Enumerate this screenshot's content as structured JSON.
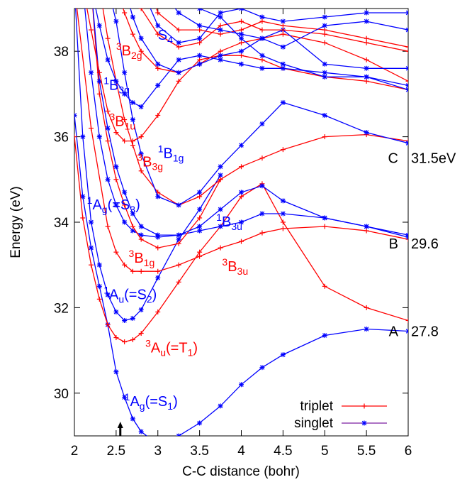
{
  "chart_data": {
    "type": "line",
    "xlabel": "C-C distance (bohr)",
    "ylabel": "Energy (eV)",
    "xlim": [
      2,
      6
    ],
    "ylim": [
      29,
      39
    ],
    "xticks": [
      "2",
      "2.5",
      "3",
      "3.5",
      "4",
      "4.5",
      "5",
      "5.5",
      "6"
    ],
    "yticks": [
      "30",
      "32",
      "34",
      "36",
      "38"
    ],
    "legend": {
      "placement": "bottom-right",
      "entries": [
        {
          "name": "triplet",
          "color": "#ff0000",
          "marker": "plus"
        },
        {
          "name": "singlet",
          "color": "#0000ff",
          "marker": "star"
        }
      ]
    },
    "arrow_at_x": 2.55,
    "right_labels": [
      {
        "letter": "A",
        "value": "27.8",
        "y": 31.45
      },
      {
        "letter": "B",
        "value": "29.6",
        "y": 33.5
      },
      {
        "letter": "C",
        "value": "31.5eV",
        "y": 35.5
      }
    ],
    "state_labels": [
      {
        "pre": "1",
        "base": "A",
        "sub": "g",
        "post": "(=S",
        "sub2": "1",
        "end": ")",
        "color": "#0000ff",
        "x": 2.6,
        "y": 29.7
      },
      {
        "pre": "3",
        "base": "A",
        "sub": "u",
        "post": "(=T",
        "sub2": "1",
        "end": ")",
        "color": "#ff0000",
        "x": 2.85,
        "y": 30.95
      },
      {
        "pre": "1",
        "base": "A",
        "sub": "u",
        "post": "(=S",
        "sub2": "2",
        "end": ")",
        "color": "#0000ff",
        "x": 2.35,
        "y": 32.2
      },
      {
        "pre": "3",
        "base": "B",
        "sub": "1g",
        "post": "",
        "sub2": "",
        "end": "",
        "color": "#ff0000",
        "x": 2.65,
        "y": 33.05
      },
      {
        "pre": "3",
        "base": "B",
        "sub": "3u",
        "post": "",
        "sub2": "",
        "end": "",
        "color": "#ff0000",
        "x": 3.77,
        "y": 32.85
      },
      {
        "pre": "1",
        "base": "B",
        "sub": "3u",
        "post": "",
        "sub2": "",
        "end": "",
        "color": "#0000ff",
        "x": 3.7,
        "y": 33.9
      },
      {
        "pre": "1",
        "base": "A",
        "sub": "g",
        "post": "(=S",
        "sub2": "3",
        "end": ")",
        "color": "#0000ff",
        "x": 2.15,
        "y": 34.3
      },
      {
        "pre": "3",
        "base": "B",
        "sub": "3g",
        "post": "",
        "sub2": "",
        "end": "",
        "color": "#ff0000",
        "x": 2.75,
        "y": 35.3
      },
      {
        "pre": "1",
        "base": "B",
        "sub": "1g",
        "post": "",
        "sub2": "",
        "end": "",
        "color": "#0000ff",
        "x": 3.0,
        "y": 35.5
      },
      {
        "pre": "3",
        "base": "B",
        "sub": "1u",
        "post": "",
        "sub2": "",
        "end": "",
        "color": "#ff0000",
        "x": 2.42,
        "y": 36.25
      },
      {
        "pre": "1",
        "base": "B",
        "sub": "3g",
        "post": "",
        "sub2": "",
        "end": "",
        "color": "#0000ff",
        "x": 2.35,
        "y": 37.1
      },
      {
        "pre": "3",
        "base": "B",
        "sub": "2g",
        "post": "",
        "sub2": "",
        "end": "",
        "color": "#ff0000",
        "x": 2.5,
        "y": 37.9
      },
      {
        "pre": "",
        "base": "S",
        "sub": "4",
        "post": "",
        "sub2": "",
        "end": "",
        "color": "#0000ff",
        "x": 3.0,
        "y": 38.4
      }
    ],
    "series": [
      {
        "spin": "singlet",
        "color": "#0000ff",
        "marker": "star",
        "x": [
          2,
          2.1,
          2.2,
          2.3,
          2.4,
          2.5,
          2.6,
          2.7,
          2.8,
          3.0,
          3.25,
          3.5,
          3.75,
          4.0,
          4.25,
          4.5,
          5.0,
          5.5,
          6.0
        ],
        "y": [
          36.5,
          34.6,
          33.4,
          32.5,
          31.6,
          30.5,
          29.9,
          29.4,
          29.1,
          28.8,
          29.0,
          29.3,
          29.7,
          30.2,
          30.6,
          30.9,
          31.35,
          31.5,
          31.45
        ]
      },
      {
        "spin": "triplet",
        "color": "#ff0000",
        "marker": "plus",
        "x": [
          2,
          2.1,
          2.2,
          2.3,
          2.4,
          2.5,
          2.6,
          2.7,
          2.8,
          3.0,
          3.25,
          3.5,
          3.75,
          4.0,
          4.25,
          4.5,
          5.0,
          5.5,
          6.0
        ],
        "y": [
          36.0,
          34.1,
          33.0,
          32.2,
          31.6,
          31.3,
          31.2,
          31.25,
          31.4,
          31.9,
          32.6,
          33.3,
          33.9,
          34.6,
          34.9,
          34.0,
          32.5,
          32.0,
          31.7
        ]
      },
      {
        "spin": "singlet",
        "color": "#0000ff",
        "marker": "star",
        "x": [
          2,
          2.1,
          2.2,
          2.3,
          2.4,
          2.5,
          2.6,
          2.7,
          2.8,
          3.0,
          3.25,
          3.5,
          3.75
        ],
        "y": [
          39.5,
          36.0,
          34.0,
          33.0,
          32.3,
          31.9,
          31.7,
          31.75,
          31.95,
          32.7,
          33.6,
          34.3,
          35.1
        ]
      },
      {
        "spin": "triplet",
        "color": "#ff0000",
        "marker": "plus",
        "x": [
          2,
          2.2,
          2.4,
          2.5,
          2.6,
          2.7,
          2.8,
          3.0,
          3.25,
          3.5,
          3.75,
          4.0,
          4.25,
          4.5,
          5.0,
          5.5,
          6.0
        ],
        "y": [
          39.5,
          36.2,
          33.9,
          33.3,
          33.0,
          32.85,
          32.85,
          32.85,
          33.0,
          33.2,
          33.4,
          33.55,
          33.75,
          33.85,
          33.9,
          33.8,
          33.6
        ]
      },
      {
        "spin": "singlet",
        "color": "#0000ff",
        "marker": "star",
        "x": [
          2.1,
          2.2,
          2.3,
          2.4,
          2.5,
          2.6,
          2.7,
          2.8,
          3.0,
          3.25,
          3.5,
          3.75,
          4.0,
          4.25,
          4.5,
          5.0,
          5.5,
          6.0
        ],
        "y": [
          39.5,
          37.5,
          36.0,
          35.0,
          34.4,
          34.0,
          33.8,
          33.7,
          33.65,
          33.7,
          33.8,
          33.9,
          34.0,
          34.2,
          34.2,
          34.1,
          33.9,
          33.65
        ]
      },
      {
        "spin": "triplet",
        "color": "#ff0000",
        "marker": "plus",
        "x": [
          2.2,
          2.3,
          2.4,
          2.5,
          2.6,
          2.7,
          2.8,
          3.0,
          3.25,
          3.5,
          3.75
        ],
        "y": [
          39.5,
          37.0,
          35.9,
          35.0,
          34.4,
          33.9,
          33.6,
          33.4,
          33.5,
          34.1,
          35.0
        ]
      },
      {
        "spin": "singlet",
        "color": "#0000ff",
        "marker": "star",
        "x": [
          2.2,
          2.3,
          2.4,
          2.5,
          2.6,
          2.7,
          2.8,
          3.0,
          3.25,
          3.5,
          3.75,
          4.0,
          4.25,
          4.5,
          5.0,
          5.5,
          6.0
        ],
        "y": [
          39.5,
          37.3,
          36.2,
          35.3,
          34.7,
          34.2,
          33.9,
          33.7,
          33.7,
          33.9,
          34.3,
          34.7,
          34.85,
          34.5,
          34.1,
          33.9,
          33.7
        ]
      },
      {
        "spin": "triplet",
        "color": "#ff0000",
        "marker": "plus",
        "x": [
          2.3,
          2.4,
          2.5,
          2.6,
          2.7,
          2.8,
          3.0,
          3.25,
          3.5,
          3.75,
          4.0,
          4.25,
          4.5,
          5.0,
          5.5,
          6.0
        ],
        "y": [
          39.5,
          38.3,
          37.3,
          36.4,
          35.8,
          35.2,
          34.7,
          34.4,
          34.6,
          35.0,
          35.3,
          35.5,
          35.7,
          36.0,
          36.05,
          35.9
        ]
      },
      {
        "spin": "singlet",
        "color": "#0000ff",
        "marker": "star",
        "x": [
          2.4,
          2.5,
          2.6,
          2.7,
          2.8,
          3.0,
          3.25,
          3.5,
          3.75,
          4.0,
          4.25,
          4.5,
          5.0,
          5.5,
          6.0
        ],
        "y": [
          39.5,
          38.7,
          37.5,
          36.4,
          35.6,
          34.6,
          34.4,
          34.7,
          35.3,
          35.8,
          36.3,
          36.8,
          36.5,
          36.1,
          35.85
        ]
      },
      {
        "spin": "triplet",
        "color": "#ff0000",
        "marker": "plus",
        "x": [
          2.1,
          2.2,
          2.3,
          2.4,
          2.5,
          2.6,
          2.7,
          2.8,
          3.0,
          3.25,
          3.5,
          3.75,
          4.0,
          4.25,
          4.5,
          5.0,
          5.5,
          6.0
        ],
        "y": [
          39.5,
          38.5,
          37.5,
          36.6,
          36.1,
          35.9,
          35.9,
          36.0,
          36.5,
          37.3,
          37.8,
          37.9,
          37.9,
          37.8,
          37.6,
          37.4,
          37.3,
          37.1
        ]
      },
      {
        "spin": "singlet",
        "color": "#0000ff",
        "marker": "star",
        "x": [
          2.2,
          2.3,
          2.4,
          2.5,
          2.6,
          2.7,
          2.8,
          3.0,
          3.25,
          3.5,
          3.75,
          4.0,
          4.25,
          4.5,
          5.0,
          5.5,
          6.0
        ],
        "y": [
          39.5,
          38.6,
          37.8,
          37.3,
          37.0,
          36.8,
          36.7,
          37.2,
          37.8,
          37.9,
          37.8,
          37.7,
          37.6,
          37.6,
          37.5,
          37.4,
          37.2
        ]
      },
      {
        "spin": "triplet",
        "color": "#ff0000",
        "marker": "plus",
        "x": [
          2.5,
          2.6,
          2.7,
          2.8,
          3.0,
          3.25,
          3.5,
          3.75,
          4.0,
          4.25,
          4.5,
          5.0,
          5.5,
          6.0
        ],
        "y": [
          39.5,
          38.9,
          38.4,
          38.0,
          37.6,
          37.5,
          37.7,
          38.0,
          38.2,
          38.3,
          38.4,
          38.2,
          37.8,
          37.3
        ]
      },
      {
        "spin": "singlet",
        "color": "#0000ff",
        "marker": "star",
        "x": [
          2.6,
          2.7,
          2.8,
          3.0,
          3.25,
          3.5,
          3.75,
          4.0,
          4.25,
          4.5,
          5.0,
          5.5,
          6.0
        ],
        "y": [
          39.5,
          38.8,
          38.3,
          37.7,
          37.5,
          37.7,
          37.9,
          38.0,
          38.3,
          38.5,
          37.7,
          37.6,
          37.6
        ]
      },
      {
        "spin": "triplet",
        "color": "#ff0000",
        "marker": "plus",
        "x": [
          2.7,
          2.8,
          3.0,
          3.25,
          3.5,
          3.75,
          4.0,
          4.25,
          4.5,
          5.0,
          5.5,
          6.0
        ],
        "y": [
          39.5,
          39.0,
          38.4,
          38.1,
          38.2,
          38.6,
          38.7,
          38.5,
          38.5,
          38.4,
          38.2,
          38.0
        ]
      },
      {
        "spin": "singlet",
        "color": "#0000ff",
        "marker": "star",
        "x": [
          2.8,
          3.0,
          3.25,
          3.5,
          3.75,
          4.0,
          4.25,
          4.5,
          5.0,
          5.5,
          6.0
        ],
        "y": [
          39.5,
          38.6,
          38.2,
          38.3,
          38.9,
          39.0,
          38.8,
          38.7,
          38.8,
          38.9,
          38.9
        ]
      },
      {
        "spin": "triplet",
        "color": "#ff0000",
        "marker": "plus",
        "x": [
          2.9,
          3.0,
          3.25,
          3.5,
          3.75,
          4.0,
          4.25,
          4.5,
          5.0,
          5.5,
          6.0
        ],
        "y": [
          39.5,
          38.9,
          38.5,
          38.5,
          38.4,
          38.5,
          38.7,
          38.6,
          38.5,
          38.3,
          38.1
        ]
      },
      {
        "spin": "singlet",
        "color": "#0000ff",
        "marker": "star",
        "x": [
          3.0,
          3.25,
          3.5,
          3.75,
          4.0,
          4.25,
          4.5,
          5.0,
          5.5,
          6.0
        ],
        "y": [
          39.5,
          38.9,
          38.6,
          38.5,
          38.4,
          38.3,
          38.1,
          38.6,
          38.7,
          38.5
        ]
      },
      {
        "spin": "singlet",
        "color": "#0000ff",
        "marker": "star",
        "x": [
          3.25,
          3.5,
          3.75,
          4.0,
          4.25,
          4.5,
          5.0,
          5.5,
          6.0
        ],
        "y": [
          39.5,
          39.0,
          38.8,
          38.3,
          37.9,
          37.7,
          37.4,
          37.4,
          37.1
        ]
      }
    ]
  }
}
